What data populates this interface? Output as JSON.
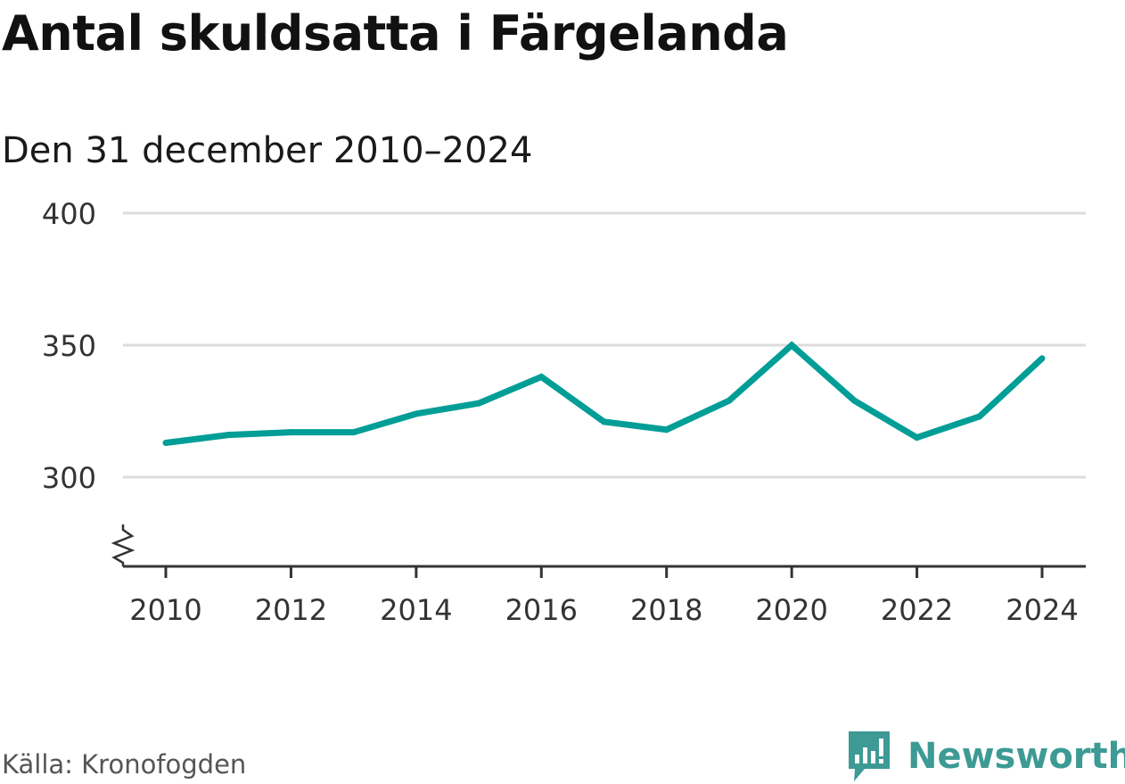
{
  "header": {
    "title": "Antal skuldsatta i Färgelanda",
    "subtitle": "Den 31 december 2010–2024"
  },
  "footer": {
    "source": "Källa: Kronofogden",
    "brand": "Newsworthy"
  },
  "colors": {
    "line": "#009e96",
    "grid": "#dddddd",
    "axis": "#333333",
    "brand": "#3d9a94"
  },
  "icons": {
    "brand_logo": "newsworthy-logo-icon",
    "axis_break": "axis-break-icon"
  },
  "chart_data": {
    "type": "line",
    "title": "Antal skuldsatta i Färgelanda",
    "subtitle": "Den 31 december 2010–2024",
    "xlabel": "",
    "ylabel": "",
    "x": [
      2010,
      2011,
      2012,
      2013,
      2014,
      2015,
      2016,
      2017,
      2018,
      2019,
      2020,
      2021,
      2022,
      2023,
      2024
    ],
    "series": [
      {
        "name": "Antal skuldsatta",
        "values": [
          313,
          316,
          317,
          317,
          324,
          328,
          338,
          321,
          318,
          329,
          350,
          329,
          315,
          323,
          345
        ]
      }
    ],
    "xticks": [
      "2010",
      "2012",
      "2014",
      "2016",
      "2018",
      "2020",
      "2022",
      "2024"
    ],
    "yticks": [
      "300",
      "350",
      "400"
    ],
    "ylim": [
      300,
      400
    ],
    "y_axis_break": true,
    "grid": true,
    "legend": "none"
  }
}
